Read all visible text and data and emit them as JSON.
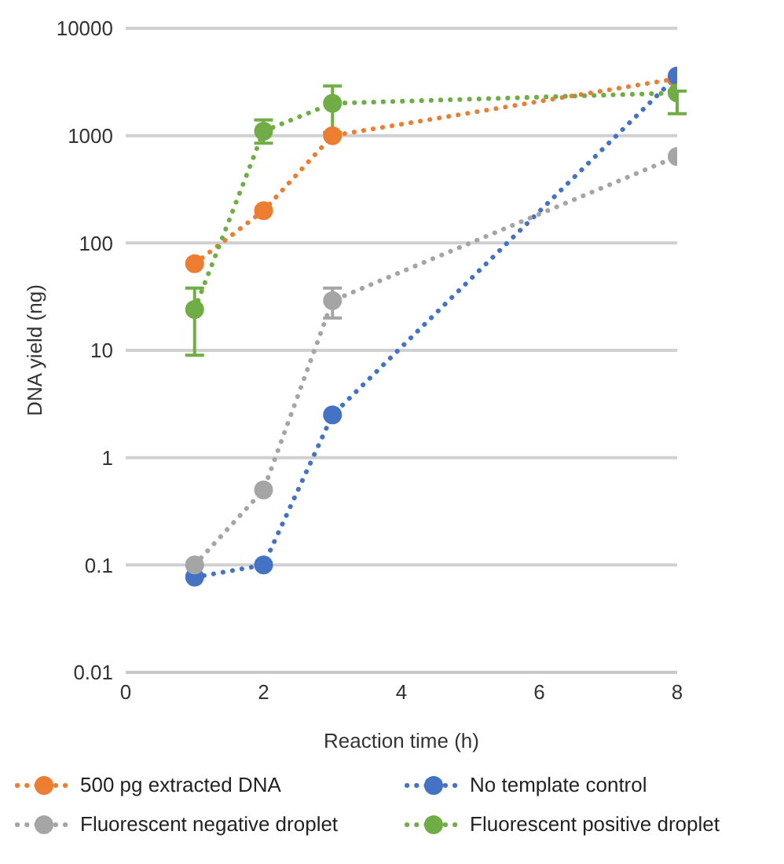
{
  "chart_data": {
    "type": "line",
    "xlabel": "Reaction time (h)",
    "ylabel": "DNA yield (ng)",
    "x": [
      1,
      2,
      3,
      8
    ],
    "series": [
      {
        "name": "500 pg extracted DNA",
        "color": "#ed7d31",
        "values": [
          64,
          200,
          1000,
          3400
        ]
      },
      {
        "name": "No template control",
        "color": "#4472c4",
        "values": [
          0.077,
          0.1,
          2.5,
          3600
        ]
      },
      {
        "name": "Fluorescent negative droplet",
        "color": "#a5a5a5",
        "values": [
          0.1,
          0.5,
          29,
          640
        ],
        "errors": [
          null,
          null,
          [
            20,
            38
          ],
          null
        ]
      },
      {
        "name": "Fluorescent positive droplet",
        "color": "#70ad47",
        "values": [
          24,
          1100,
          2000,
          2500
        ],
        "errors": [
          [
            9,
            38
          ],
          [
            850,
            1400
          ],
          [
            1070,
            2900
          ],
          [
            1600,
            2600
          ]
        ]
      }
    ],
    "xlim": [
      0,
      8
    ],
    "xticks": [
      0,
      2,
      4,
      6,
      8
    ],
    "ylim": [
      0.01,
      10000
    ],
    "yticks": [
      0.01,
      0.1,
      1,
      10,
      100,
      1000,
      10000
    ],
    "log": "y",
    "grid": "y",
    "legend": "bottom",
    "marker": "circle",
    "line_style": "dotted"
  }
}
